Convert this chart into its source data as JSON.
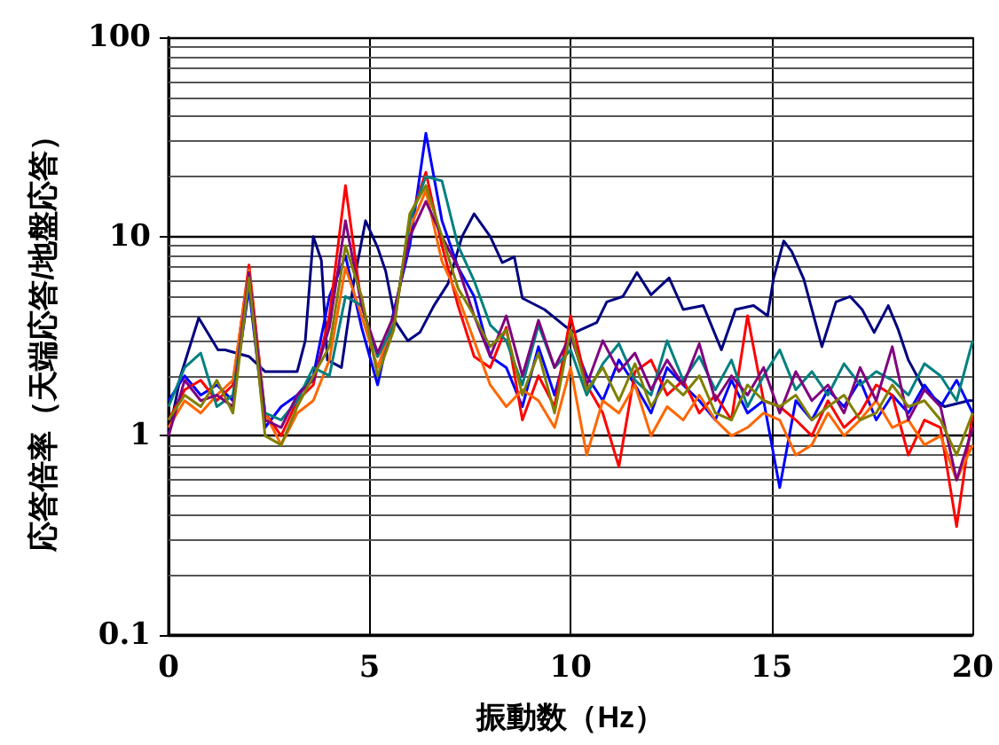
{
  "chart_data": {
    "type": "line",
    "xlabel": "振動数（Hz）",
    "ylabel": "応答倍率（天端応答/地盤応答）",
    "log": "y",
    "grid": true,
    "marker": "none",
    "line_style": "solid",
    "xlim": [
      0,
      20
    ],
    "xticks": [
      0,
      5,
      10,
      15,
      20
    ],
    "ylim": [
      0.1,
      100
    ],
    "yticks": [
      0.1,
      1,
      10,
      100
    ],
    "x": [
      0,
      0.4,
      0.8,
      1.2,
      1.6,
      2.0,
      2.4,
      2.8,
      3.2,
      3.6,
      4.0,
      4.4,
      4.8,
      5.2,
      5.6,
      6.0,
      6.4,
      6.8,
      7.2,
      7.6,
      8.0,
      8.4,
      8.8,
      9.2,
      9.6,
      10,
      10.4,
      10.8,
      11.2,
      11.6,
      12,
      12.4,
      12.8,
      13.2,
      13.6,
      14,
      14.4,
      14.8,
      15.2,
      15.6,
      16,
      16.4,
      16.8,
      17.2,
      17.6,
      18,
      18.4,
      18.8,
      19.2,
      19.6,
      20
    ],
    "series": [
      {
        "color": "#000080",
        "x": [
          0,
          0.3,
          0.75,
          1.23,
          1.4,
          2.0,
          2.4,
          3.2,
          3.4,
          3.6,
          3.8,
          3.95,
          4.3,
          4.6,
          4.9,
          5.2,
          5.4,
          5.65,
          5.95,
          6.25,
          6.6,
          6.95,
          7.3,
          7.6,
          8.0,
          8.3,
          8.6,
          8.8,
          9.35,
          9.9,
          10.1,
          10.65,
          10.9,
          11.3,
          11.65,
          12.0,
          12.45,
          12.8,
          13.3,
          13.75,
          14.1,
          14.55,
          14.9,
          15.05,
          15.3,
          15.5,
          15.8,
          16.25,
          16.6,
          16.95,
          17.25,
          17.55,
          17.9,
          18.15,
          18.4,
          18.8,
          19.3,
          19.9,
          20
        ],
        "values": [
          1.0,
          2.0,
          3.9,
          2.7,
          2.7,
          2.5,
          2.1,
          2.1,
          3.0,
          10,
          7.6,
          2.4,
          2.2,
          5.8,
          12,
          8.8,
          6.7,
          3.7,
          3.0,
          3.3,
          4.5,
          5.8,
          10,
          13,
          10,
          7.4,
          7.9,
          4.9,
          4.3,
          3.5,
          3.3,
          3.7,
          4.7,
          5.0,
          6.6,
          5.1,
          6.2,
          4.3,
          4.5,
          2.7,
          4.3,
          4.5,
          4.0,
          6.2,
          9.5,
          8.4,
          6.1,
          2.8,
          4.7,
          5.0,
          4.3,
          3.3,
          4.5,
          3.4,
          2.4,
          1.7,
          1.4,
          1.5,
          1.5
        ]
      },
      {
        "color": "#0000ff",
        "values": [
          1.5,
          2.0,
          1.6,
          1.8,
          1.5,
          5.5,
          1.1,
          1.4,
          1.6,
          2.0,
          5.0,
          8.0,
          3.5,
          1.8,
          4.2,
          9.0,
          33,
          12,
          7.0,
          5.0,
          2.5,
          2.2,
          1.4,
          2.8,
          1.6,
          3.2,
          2.0,
          1.5,
          2.4,
          1.8,
          1.3,
          2.2,
          1.8,
          1.5,
          1.2,
          1.9,
          1.3,
          1.5,
          0.55,
          1.5,
          1.2,
          1.7,
          1.4,
          1.9,
          1.2,
          1.6,
          1.3,
          1.8,
          1.4,
          1.9,
          1.3
        ]
      },
      {
        "color": "#ff0000",
        "values": [
          1.2,
          1.7,
          1.9,
          1.5,
          1.8,
          7.2,
          1.3,
          1.0,
          1.5,
          1.8,
          4.0,
          18,
          4.5,
          2.5,
          3.5,
          12,
          21,
          9,
          4.5,
          2.5,
          2.2,
          3.5,
          1.2,
          2.0,
          1.4,
          4.0,
          1.8,
          1.3,
          0.7,
          2.1,
          2.4,
          1.6,
          1.9,
          1.3,
          1.6,
          1.2,
          4.0,
          1.5,
          1.4,
          1.2,
          1.0,
          1.5,
          1.1,
          1.3,
          1.8,
          1.6,
          0.8,
          1.2,
          1.1,
          0.35,
          1.3
        ]
      },
      {
        "color": "#ff6600",
        "values": [
          1.1,
          1.5,
          1.3,
          1.6,
          1.9,
          6.8,
          1.3,
          0.9,
          1.3,
          1.5,
          2.4,
          7.0,
          4.0,
          2.2,
          3.8,
          11,
          17,
          7.5,
          5.0,
          3.0,
          1.8,
          1.4,
          1.7,
          1.5,
          1.1,
          2.2,
          0.8,
          1.5,
          1.3,
          1.8,
          1.0,
          1.4,
          1.2,
          1.6,
          1.2,
          1.0,
          1.1,
          1.3,
          1.2,
          0.8,
          0.9,
          1.3,
          1.0,
          1.2,
          1.5,
          1.1,
          1.2,
          0.9,
          1.0,
          0.6,
          0.9
        ]
      },
      {
        "color": "#008080",
        "values": [
          1.4,
          2.2,
          2.6,
          1.4,
          1.6,
          6.0,
          1.3,
          1.2,
          1.5,
          2.2,
          2.0,
          5.0,
          4.5,
          2.5,
          3.6,
          12,
          20,
          19,
          9,
          6,
          3.6,
          3.0,
          1.8,
          3.6,
          2.2,
          2.7,
          1.6,
          2.3,
          2.9,
          1.9,
          1.6,
          3.0,
          1.9,
          2.5,
          1.7,
          2.4,
          1.4,
          2.0,
          2.7,
          1.7,
          2.1,
          1.6,
          2.3,
          1.8,
          2.1,
          1.9,
          1.6,
          2.3,
          2.0,
          1.5,
          3.0
        ]
      },
      {
        "color": "#800080",
        "values": [
          1.0,
          1.9,
          1.5,
          1.6,
          1.4,
          6.6,
          1.2,
          1.1,
          1.6,
          1.9,
          3.5,
          12,
          4.5,
          2.6,
          4.0,
          10,
          15,
          10,
          7,
          4.0,
          2.5,
          4.0,
          2.0,
          3.8,
          2.2,
          3.2,
          1.8,
          3.0,
          2.1,
          2.6,
          1.7,
          2.4,
          1.8,
          2.9,
          1.5,
          2.0,
          1.6,
          2.2,
          1.3,
          2.1,
          1.5,
          1.8,
          1.3,
          2.2,
          1.5,
          2.8,
          1.2,
          1.7,
          1.4,
          0.6,
          1.1
        ]
      },
      {
        "color": "#808000",
        "values": [
          1.2,
          1.6,
          1.4,
          1.9,
          1.3,
          6.2,
          1.0,
          0.9,
          1.4,
          2.0,
          2.8,
          9,
          5,
          2.0,
          3.4,
          13,
          18,
          10,
          5.5,
          4.0,
          2.8,
          3.4,
          1.6,
          2.6,
          1.3,
          3.4,
          1.7,
          2.2,
          1.5,
          2.3,
          1.4,
          1.9,
          1.6,
          2.0,
          1.3,
          1.2,
          1.8,
          1.5,
          1.4,
          1.6,
          1.2,
          1.4,
          1.6,
          1.2,
          1.3,
          1.8,
          1.4,
          1.5,
          1.2,
          0.8,
          1.3
        ]
      }
    ]
  }
}
